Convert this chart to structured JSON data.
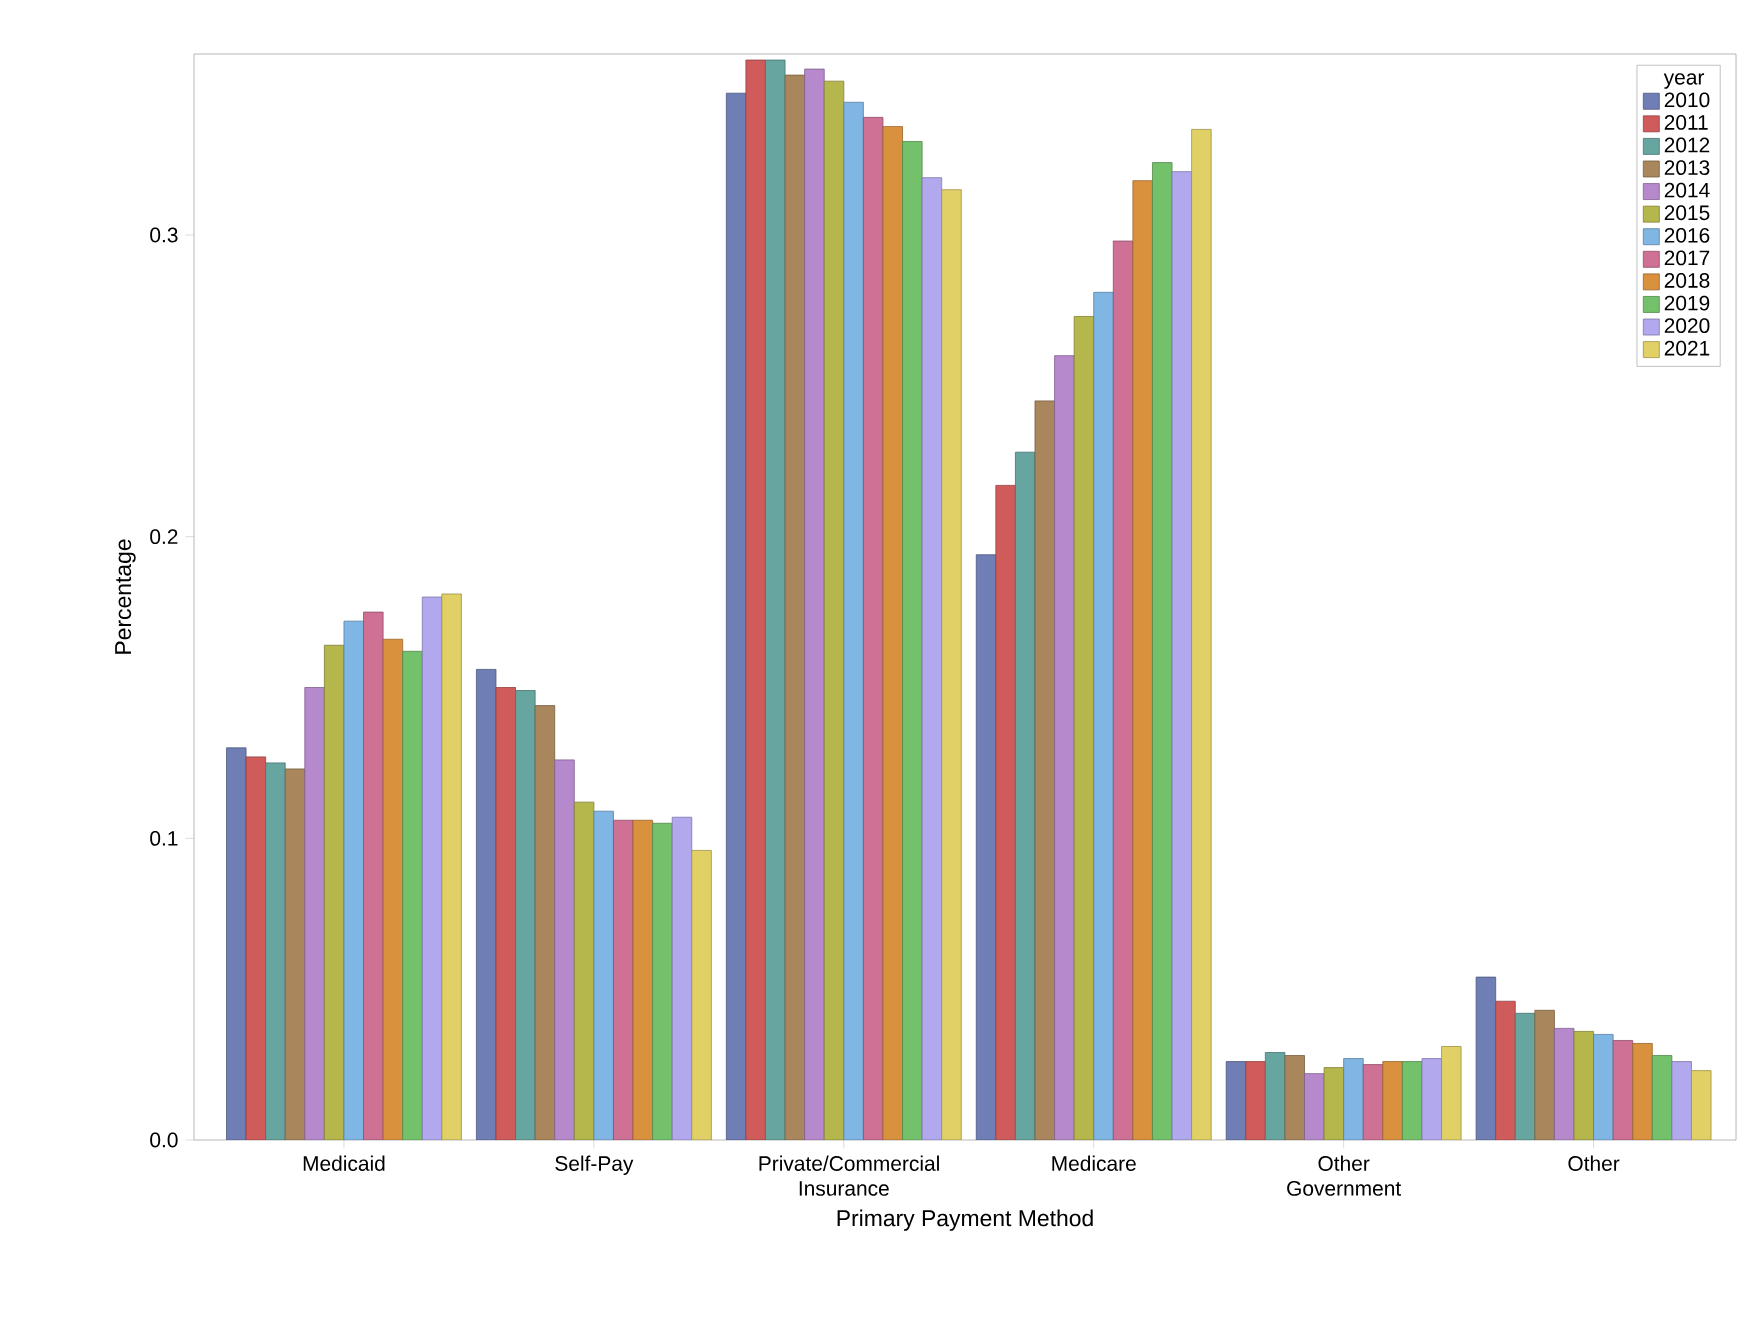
{
  "chart_data": {
    "type": "bar",
    "xlabel": "Primary Payment Method",
    "ylabel": "Percentage",
    "legend_title": "year",
    "categories": [
      "Medicaid",
      "Self-Pay",
      "Private/Commercial Insurance",
      "Medicare",
      "Other Government",
      "Other"
    ],
    "series": [
      {
        "name": "2010",
        "color": "#6f7eb5",
        "values": [
          0.13,
          0.156,
          0.347,
          0.194,
          0.026,
          0.054
        ]
      },
      {
        "name": "2011",
        "color": "#d05b5b",
        "values": [
          0.127,
          0.15,
          0.358,
          0.217,
          0.026,
          0.046
        ]
      },
      {
        "name": "2012",
        "color": "#66a5a0",
        "values": [
          0.125,
          0.149,
          0.358,
          0.228,
          0.029,
          0.042
        ]
      },
      {
        "name": "2013",
        "color": "#a9865b",
        "values": [
          0.123,
          0.144,
          0.353,
          0.245,
          0.028,
          0.043
        ]
      },
      {
        "name": "2014",
        "color": "#b689cd",
        "values": [
          0.15,
          0.126,
          0.355,
          0.26,
          0.022,
          0.037
        ]
      },
      {
        "name": "2015",
        "color": "#b5b64c",
        "values": [
          0.164,
          0.112,
          0.351,
          0.273,
          0.024,
          0.036
        ]
      },
      {
        "name": "2016",
        "color": "#7fb6e3",
        "values": [
          0.172,
          0.109,
          0.344,
          0.281,
          0.027,
          0.035
        ]
      },
      {
        "name": "2017",
        "color": "#cf7095",
        "values": [
          0.175,
          0.106,
          0.339,
          0.298,
          0.025,
          0.033
        ]
      },
      {
        "name": "2018",
        "color": "#d9913e",
        "values": [
          0.166,
          0.106,
          0.336,
          0.318,
          0.026,
          0.032
        ]
      },
      {
        "name": "2019",
        "color": "#73c26b",
        "values": [
          0.162,
          0.105,
          0.331,
          0.324,
          0.026,
          0.028
        ]
      },
      {
        "name": "2020",
        "color": "#b2a8ee",
        "values": [
          0.18,
          0.107,
          0.319,
          0.321,
          0.027,
          0.026
        ]
      },
      {
        "name": "2021",
        "color": "#e0d066",
        "values": [
          0.181,
          0.096,
          0.315,
          0.335,
          0.031,
          0.023
        ]
      }
    ],
    "ylim": [
      0,
      0.36
    ],
    "yticks": [
      {
        "value": 0,
        "label": "0.0"
      },
      0.1,
      0.2,
      0.3
    ],
    "legend": "top right"
  }
}
